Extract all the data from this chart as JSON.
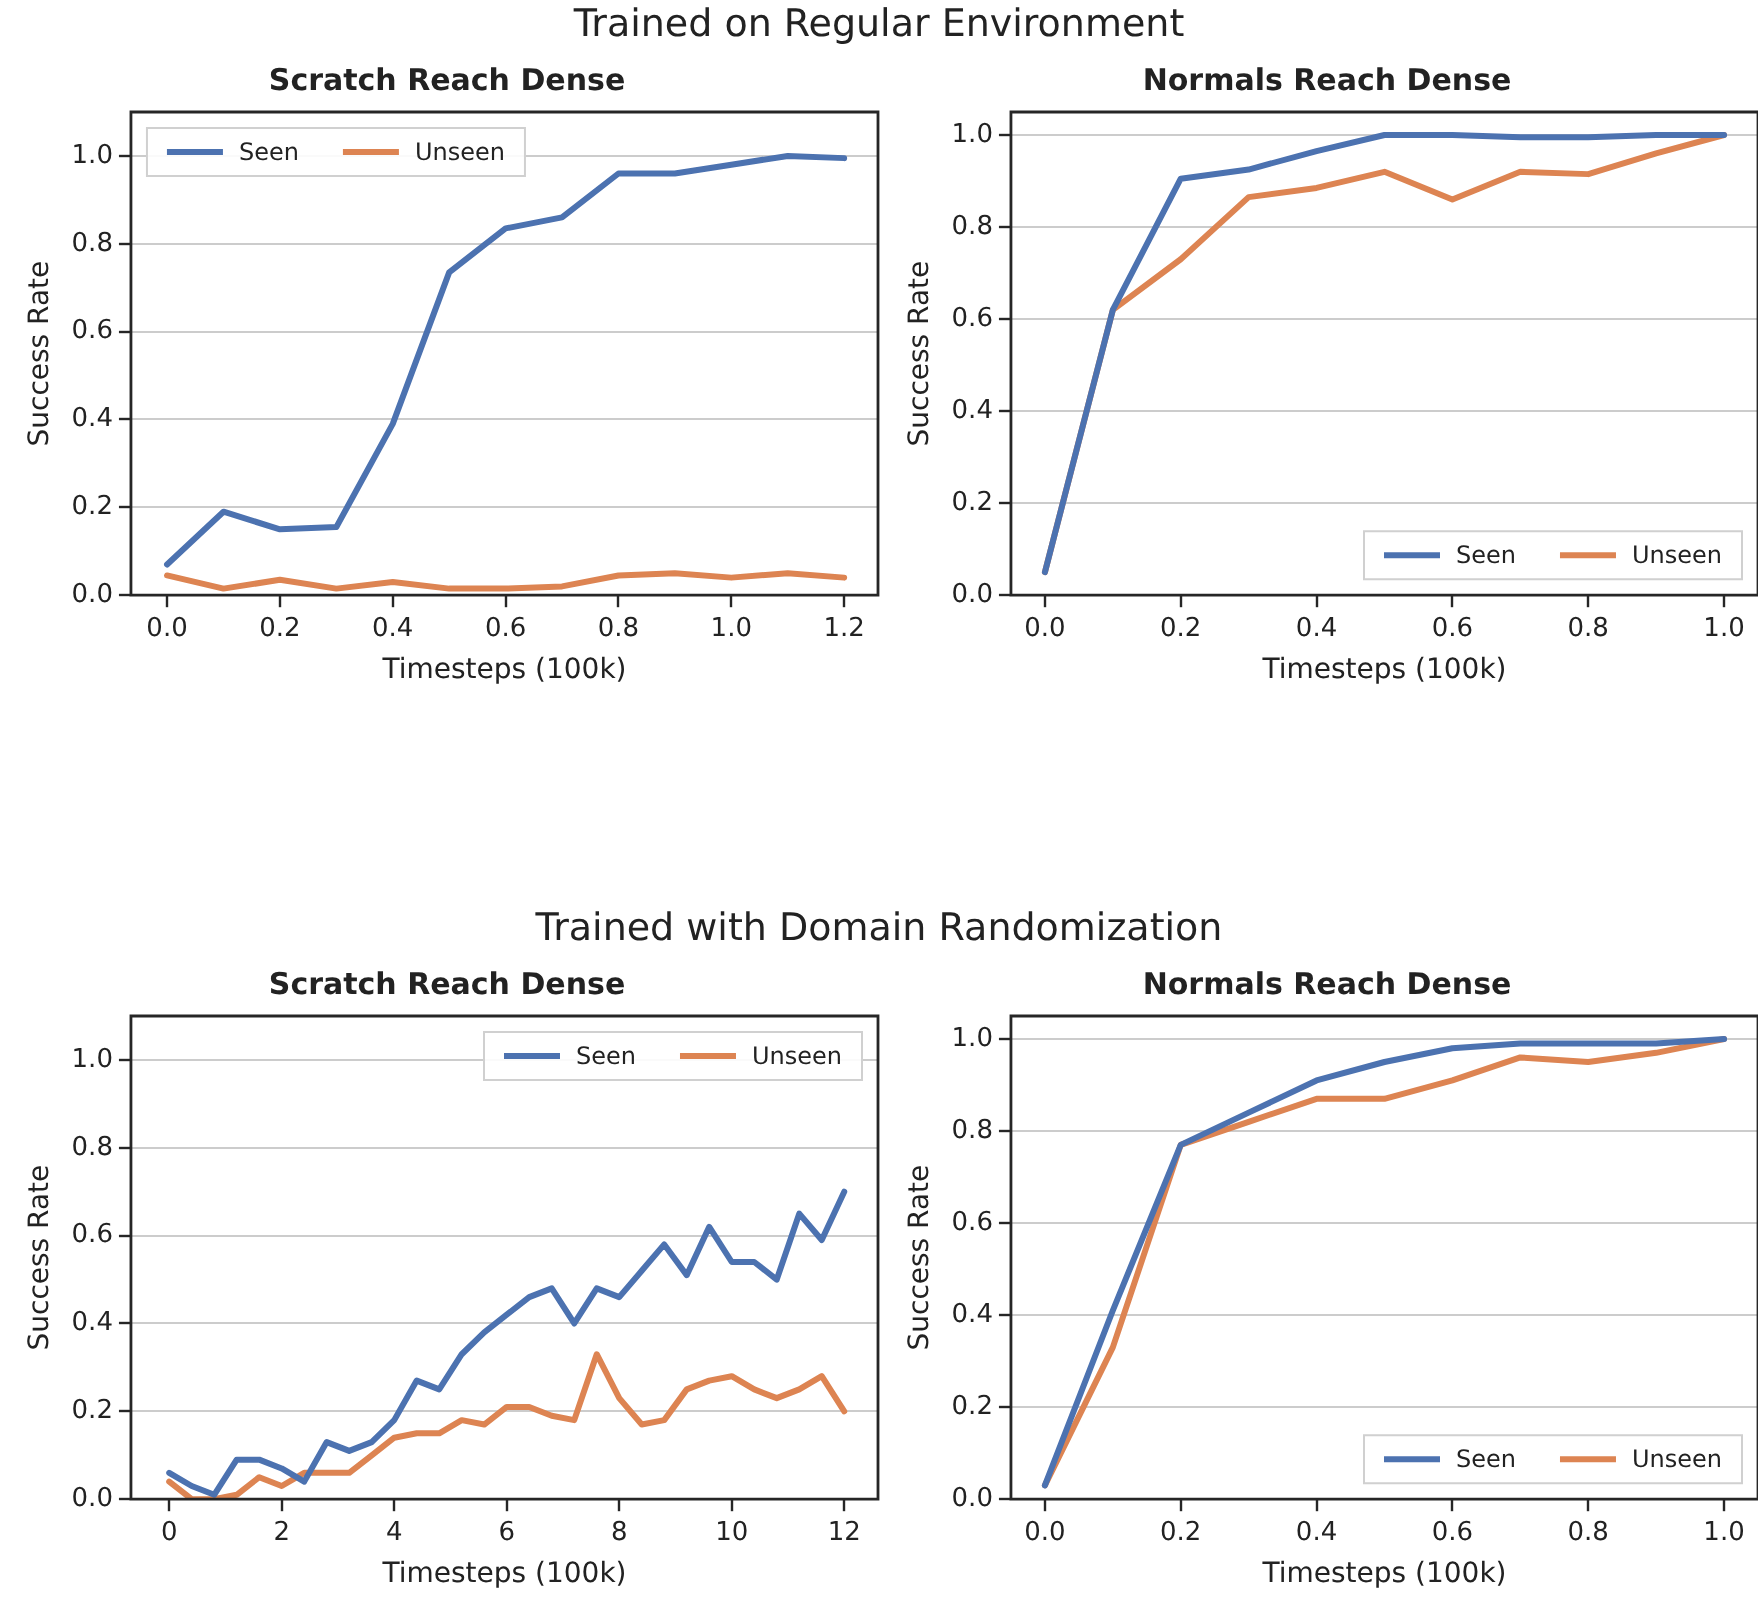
{
  "chart_data": [
    {
      "type": "line",
      "title": "Scratch Reach Dense",
      "annotations": [
        "Trained on Regular Environment"
      ],
      "xlabel": "Timesteps (100k)",
      "ylabel": "Success Rate",
      "x": [
        0,
        0.1,
        0.2,
        0.3,
        0.4,
        0.5,
        0.6,
        0.7,
        0.8,
        0.9,
        1.0,
        1.1,
        1.2
      ],
      "series": [
        {
          "name": "Seen",
          "color": "#4c72b0",
          "values": [
            0.07,
            0.19,
            0.15,
            0.155,
            0.39,
            0.735,
            0.835,
            0.86,
            0.96,
            0.96,
            0.98,
            1.0,
            0.995
          ]
        },
        {
          "name": "Unseen",
          "color": "#dd8452",
          "values": [
            0.045,
            0.015,
            0.035,
            0.015,
            0.03,
            0.015,
            0.015,
            0.02,
            0.045,
            0.05,
            0.04,
            0.05,
            0.04
          ]
        }
      ],
      "xlim": [
        -0.064,
        1.26
      ],
      "xticks": [
        {
          "value": 0,
          "label": "0.0"
        },
        {
          "value": 0.2,
          "label": "0.2"
        },
        {
          "value": 0.4,
          "label": "0.4"
        },
        {
          "value": 0.6,
          "label": "0.6"
        },
        {
          "value": 0.8,
          "label": "0.8"
        },
        {
          "value": 1.0,
          "label": "1.0"
        },
        {
          "value": 1.2,
          "label": "1.2"
        }
      ],
      "ylim": [
        0,
        1.1
      ],
      "yticks": [
        {
          "value": 0,
          "label": "0.0"
        },
        {
          "value": 0.2,
          "label": "0.2"
        },
        {
          "value": 0.4,
          "label": "0.4"
        },
        {
          "value": 0.6,
          "label": "0.6"
        },
        {
          "value": 0.8,
          "label": "0.8"
        },
        {
          "value": 1.0,
          "label": "1.0"
        }
      ],
      "grid": "y",
      "legend": "top left",
      "marker": "none",
      "line_style": "solid"
    },
    {
      "type": "line",
      "title": "Normals Reach Dense",
      "xlabel": "Timesteps (100k)",
      "ylabel": "Success Rate",
      "x": [
        0,
        0.1,
        0.2,
        0.3,
        0.4,
        0.5,
        0.6,
        0.7,
        0.8,
        0.9,
        1.0
      ],
      "series": [
        {
          "name": "Seen",
          "color": "#4c72b0",
          "values": [
            0.05,
            0.62,
            0.905,
            0.925,
            0.965,
            1.0,
            1.0,
            0.995,
            0.995,
            1.0,
            1.0
          ]
        },
        {
          "name": "Unseen",
          "color": "#dd8452",
          "values": [
            0.05,
            0.62,
            0.73,
            0.865,
            0.885,
            0.92,
            0.86,
            0.92,
            0.915,
            0.96,
            1.0
          ]
        }
      ],
      "xlim": [
        -0.05,
        1.05
      ],
      "xticks": [
        {
          "value": 0,
          "label": "0.0"
        },
        {
          "value": 0.2,
          "label": "0.2"
        },
        {
          "value": 0.4,
          "label": "0.4"
        },
        {
          "value": 0.6,
          "label": "0.6"
        },
        {
          "value": 0.8,
          "label": "0.8"
        },
        {
          "value": 1.0,
          "label": "1.0"
        }
      ],
      "ylim": [
        0,
        1.05
      ],
      "yticks": [
        {
          "value": 0,
          "label": "0.0"
        },
        {
          "value": 0.2,
          "label": "0.2"
        },
        {
          "value": 0.4,
          "label": "0.4"
        },
        {
          "value": 0.6,
          "label": "0.6"
        },
        {
          "value": 0.8,
          "label": "0.8"
        },
        {
          "value": 1.0,
          "label": "1.0"
        }
      ],
      "grid": "y",
      "legend": "bottom right",
      "marker": "none",
      "line_style": "solid"
    },
    {
      "type": "line",
      "title": "Scratch Reach Dense",
      "annotations": [
        "Trained with Domain Randomization"
      ],
      "xlabel": "Timesteps (100k)",
      "ylabel": "Success Rate",
      "x": [
        0,
        0.4,
        0.8,
        1.2,
        1.6,
        2.0,
        2.4,
        2.8,
        3.2,
        3.6,
        4.0,
        4.4,
        4.8,
        5.2,
        5.6,
        6.0,
        6.4,
        6.8,
        7.2,
        7.6,
        8.0,
        8.4,
        8.8,
        9.2,
        9.6,
        10.0,
        10.4,
        10.8,
        11.2,
        11.6,
        12.0
      ],
      "series": [
        {
          "name": "Seen",
          "color": "#4c72b0",
          "values": [
            0.06,
            0.03,
            0.01,
            0.09,
            0.09,
            0.07,
            0.04,
            0.13,
            0.11,
            0.13,
            0.18,
            0.27,
            0.25,
            0.33,
            0.38,
            0.42,
            0.46,
            0.48,
            0.4,
            0.48,
            0.46,
            0.52,
            0.58,
            0.51,
            0.62,
            0.54,
            0.54,
            0.5,
            0.65,
            0.59,
            0.7
          ]
        },
        {
          "name": "Unseen",
          "color": "#dd8452",
          "values": [
            0.04,
            0.0,
            0.0,
            0.01,
            0.05,
            0.03,
            0.06,
            0.06,
            0.06,
            0.1,
            0.14,
            0.15,
            0.15,
            0.18,
            0.17,
            0.21,
            0.21,
            0.19,
            0.18,
            0.33,
            0.23,
            0.17,
            0.18,
            0.25,
            0.27,
            0.28,
            0.25,
            0.23,
            0.25,
            0.28,
            0.2
          ]
        }
      ],
      "xlim": [
        -0.68,
        12.6
      ],
      "xticks": [
        0,
        2,
        4,
        6,
        8,
        10,
        12
      ],
      "ylim": [
        0,
        1.1
      ],
      "yticks": [
        {
          "value": 0,
          "label": "0.0"
        },
        {
          "value": 0.2,
          "label": "0.2"
        },
        {
          "value": 0.4,
          "label": "0.4"
        },
        {
          "value": 0.6,
          "label": "0.6"
        },
        {
          "value": 0.8,
          "label": "0.8"
        },
        {
          "value": 1.0,
          "label": "1.0"
        }
      ],
      "grid": "y",
      "legend": "top right",
      "marker": "none",
      "line_style": "solid"
    },
    {
      "type": "line",
      "title": "Normals Reach Dense",
      "xlabel": "Timesteps (100k)",
      "ylabel": "Success Rate",
      "x": [
        0,
        0.1,
        0.2,
        0.3,
        0.4,
        0.5,
        0.6,
        0.7,
        0.8,
        0.9,
        1.0
      ],
      "series": [
        {
          "name": "Seen",
          "color": "#4c72b0",
          "values": [
            0.03,
            0.41,
            0.77,
            0.84,
            0.91,
            0.95,
            0.98,
            0.99,
            0.99,
            0.99,
            1.0
          ]
        },
        {
          "name": "Unseen",
          "color": "#dd8452",
          "values": [
            0.03,
            0.33,
            0.77,
            0.82,
            0.87,
            0.87,
            0.91,
            0.96,
            0.95,
            0.97,
            1.0
          ]
        }
      ],
      "xlim": [
        -0.05,
        1.05
      ],
      "xticks": [
        {
          "value": 0,
          "label": "0.0"
        },
        {
          "value": 0.2,
          "label": "0.2"
        },
        {
          "value": 0.4,
          "label": "0.4"
        },
        {
          "value": 0.6,
          "label": "0.6"
        },
        {
          "value": 0.8,
          "label": "0.8"
        },
        {
          "value": 1.0,
          "label": "1.0"
        }
      ],
      "ylim": [
        0,
        1.05
      ],
      "yticks": [
        {
          "value": 0,
          "label": "0.0"
        },
        {
          "value": 0.2,
          "label": "0.2"
        },
        {
          "value": 0.4,
          "label": "0.4"
        },
        {
          "value": 0.6,
          "label": "0.6"
        },
        {
          "value": 0.8,
          "label": "0.8"
        },
        {
          "value": 1.0,
          "label": "1.0"
        }
      ],
      "grid": "y",
      "legend": "bottom right",
      "marker": "none",
      "line_style": "solid"
    }
  ]
}
